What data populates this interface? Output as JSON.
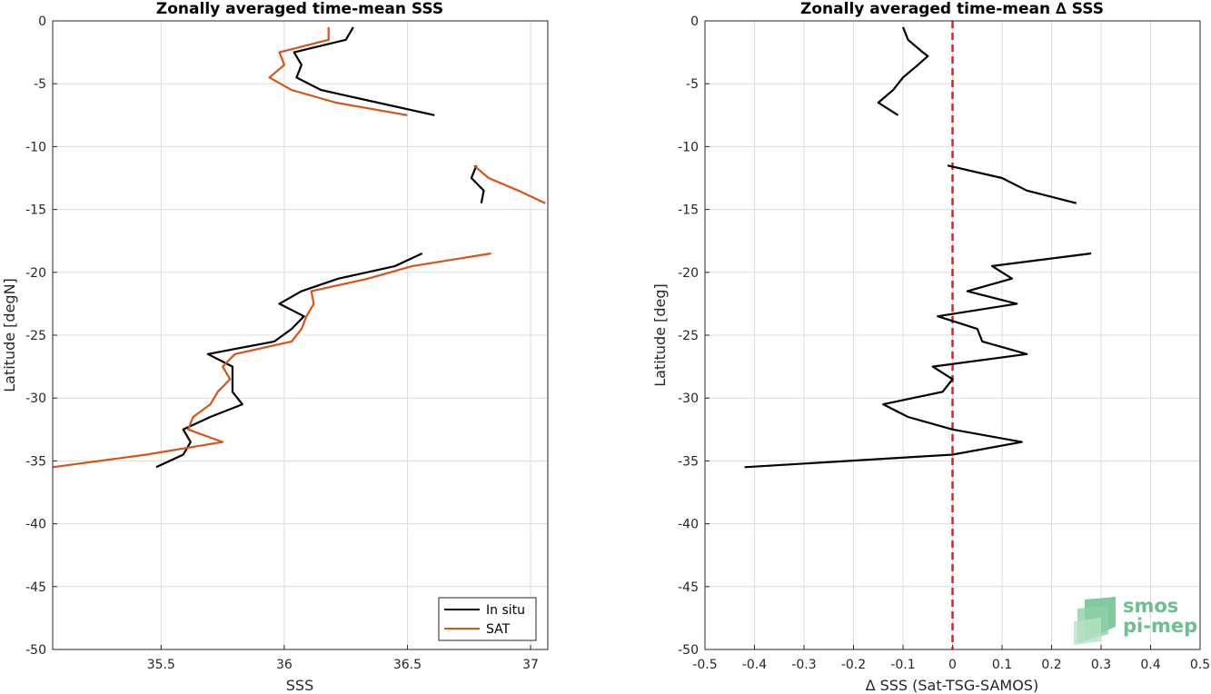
{
  "logo": {
    "line1": "smos",
    "line2": "pi-mep",
    "color": "#6cc08e"
  },
  "chart_data": [
    {
      "type": "line",
      "title": "Zonally averaged time-mean SSS",
      "xlabel": "SSS",
      "ylabel": "Latitude [degN]",
      "xlim": [
        35.06,
        37.07
      ],
      "ylim": [
        -50,
        0
      ],
      "xticks": [
        35.5,
        36,
        36.5,
        37
      ],
      "xtick_labels": [
        "35.5",
        "36",
        "36.5",
        "37"
      ],
      "yticks": [
        0,
        -5,
        -10,
        -15,
        -20,
        -25,
        -30,
        -35,
        -40,
        -45,
        -50
      ],
      "ytick_labels": [
        "0",
        "-5",
        "-10",
        "-15",
        "-20",
        "-25",
        "-30",
        "-35",
        "-40",
        "-45",
        "-50"
      ],
      "grid": true,
      "legend": "bottom-right",
      "series": [
        {
          "name": "In situ",
          "color": "#000000",
          "segments": [
            [
              [
                36.28,
                -0.5
              ],
              [
                36.25,
                -1.5
              ],
              [
                36.04,
                -2.5
              ],
              [
                36.07,
                -3.5
              ],
              [
                36.05,
                -4.5
              ],
              [
                36.15,
                -5.5
              ],
              [
                36.38,
                -6.5
              ],
              [
                36.61,
                -7.5
              ]
            ],
            [
              [
                36.78,
                -11.5
              ],
              [
                36.76,
                -12.5
              ],
              [
                36.81,
                -13.5
              ],
              [
                36.8,
                -14.5
              ]
            ],
            [
              [
                36.56,
                -18.5
              ],
              [
                36.45,
                -19.5
              ],
              [
                36.22,
                -20.5
              ],
              [
                36.07,
                -21.5
              ],
              [
                35.98,
                -22.5
              ],
              [
                36.08,
                -23.5
              ],
              [
                36.03,
                -24.5
              ],
              [
                35.96,
                -25.5
              ],
              [
                35.69,
                -26.5
              ],
              [
                35.79,
                -27.5
              ],
              [
                35.79,
                -28.5
              ],
              [
                35.79,
                -29.5
              ],
              [
                35.83,
                -30.5
              ],
              [
                35.7,
                -31.5
              ],
              [
                35.59,
                -32.5
              ],
              [
                35.62,
                -33.5
              ],
              [
                35.59,
                -34.5
              ],
              [
                35.48,
                -35.5
              ]
            ]
          ]
        },
        {
          "name": "SAT",
          "color": "#d95319",
          "segments": [
            [
              [
                36.18,
                -0.5
              ],
              [
                36.18,
                -1.5
              ],
              [
                35.98,
                -2.5
              ],
              [
                36.0,
                -3.5
              ],
              [
                35.94,
                -4.5
              ],
              [
                36.03,
                -5.5
              ],
              [
                36.21,
                -6.5
              ],
              [
                36.5,
                -7.5
              ]
            ],
            [
              [
                36.77,
                -11.5
              ],
              [
                36.83,
                -12.5
              ],
              [
                36.95,
                -13.5
              ],
              [
                37.06,
                -14.5
              ]
            ],
            [
              [
                36.84,
                -18.5
              ],
              [
                36.52,
                -19.5
              ],
              [
                36.34,
                -20.5
              ],
              [
                36.11,
                -21.5
              ],
              [
                36.12,
                -22.5
              ],
              [
                36.09,
                -23.5
              ],
              [
                36.07,
                -24.5
              ],
              [
                36.03,
                -25.5
              ],
              [
                35.8,
                -26.5
              ],
              [
                35.75,
                -27.5
              ],
              [
                35.78,
                -28.5
              ],
              [
                35.73,
                -29.5
              ],
              [
                35.7,
                -30.5
              ],
              [
                35.63,
                -31.5
              ],
              [
                35.61,
                -32.5
              ],
              [
                35.75,
                -33.5
              ],
              [
                35.44,
                -34.5
              ],
              [
                35.06,
                -35.5
              ]
            ]
          ]
        }
      ]
    },
    {
      "type": "line",
      "title": "Zonally averaged time-mean ∆ SSS",
      "xlabel": "∆ SSS (Sat-TSG-SAMOS)",
      "ylabel": "Latitude [deg]",
      "xlim": [
        -0.5,
        0.5
      ],
      "ylim": [
        -50,
        0
      ],
      "xticks": [
        -0.5,
        -0.4,
        -0.3,
        -0.2,
        -0.1,
        0,
        0.1,
        0.2,
        0.3,
        0.4,
        0.5
      ],
      "xtick_labels": [
        "-0.5",
        "-0.4",
        "-0.3",
        "-0.2",
        "-0.1",
        "0",
        "0.1",
        "0.2",
        "0.3",
        "0.4",
        "0.5"
      ],
      "yticks": [
        0,
        -5,
        -10,
        -15,
        -20,
        -25,
        -30,
        -35,
        -40,
        -45,
        -50
      ],
      "ytick_labels": [
        "0",
        "-5",
        "-10",
        "-15",
        "-20",
        "-25",
        "-30",
        "-35",
        "-40",
        "-45",
        "-50"
      ],
      "grid": true,
      "reference_line": {
        "x": 0,
        "color": "#e0201b",
        "style": "dashed"
      },
      "series": [
        {
          "color": "#000000",
          "segments": [
            [
              [
                -0.1,
                -0.5
              ],
              [
                -0.09,
                -1.5
              ],
              [
                -0.06,
                -2.5
              ],
              [
                -0.05,
                -2.8
              ],
              [
                -0.07,
                -3.5
              ],
              [
                -0.1,
                -4.5
              ],
              [
                -0.12,
                -5.5
              ],
              [
                -0.15,
                -6.5
              ],
              [
                -0.11,
                -7.5
              ]
            ],
            [
              [
                -0.01,
                -11.5
              ],
              [
                0.1,
                -12.5
              ],
              [
                0.15,
                -13.5
              ],
              [
                0.25,
                -14.5
              ]
            ],
            [
              [
                0.28,
                -18.5
              ],
              [
                0.08,
                -19.5
              ],
              [
                0.12,
                -20.5
              ],
              [
                0.03,
                -21.5
              ],
              [
                0.13,
                -22.5
              ],
              [
                -0.03,
                -23.5
              ],
              [
                0.05,
                -24.5
              ],
              [
                0.06,
                -25.5
              ],
              [
                0.15,
                -26.5
              ],
              [
                -0.04,
                -27.5
              ],
              [
                0.0,
                -28.5
              ],
              [
                -0.02,
                -29.5
              ],
              [
                -0.14,
                -30.5
              ],
              [
                -0.09,
                -31.5
              ],
              [
                0.0,
                -32.5
              ],
              [
                0.14,
                -33.5
              ],
              [
                0.0,
                -34.5
              ],
              [
                -0.42,
                -35.5
              ]
            ]
          ]
        }
      ]
    }
  ]
}
